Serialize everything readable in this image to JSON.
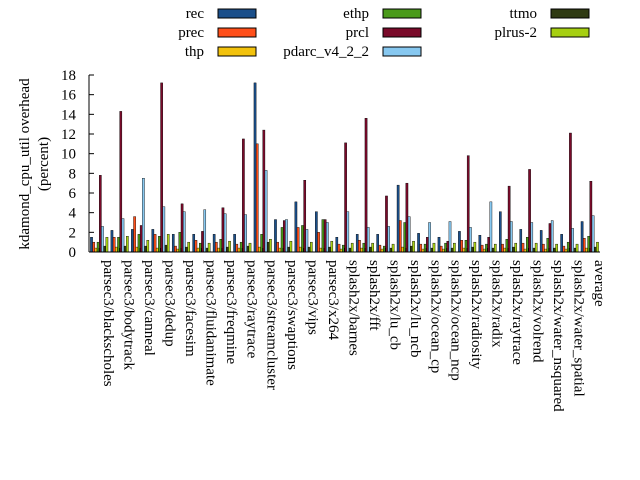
{
  "chart_data": {
    "type": "bar",
    "ylabel_line1": "kdamond_cpu_util overhead",
    "ylabel_line2": "(percent)",
    "ylim": [
      0,
      18
    ],
    "yticks": [
      0,
      2,
      4,
      6,
      8,
      10,
      12,
      14,
      16,
      18
    ],
    "grid": false,
    "legend_position": "top",
    "categories": [
      "parsec3/blackscholes",
      "parsec3/bodytrack",
      "parsec3/canneal",
      "parsec3/dedup",
      "parsec3/facesim",
      "parsec3/fluidanimate",
      "parsec3/freqmine",
      "parsec3/raytrace",
      "parsec3/streamcluster",
      "parsec3/swaptions",
      "parsec3/vips",
      "parsec3/x264",
      "splash2x/barnes",
      "splash2x/fft",
      "splash2x/lu_cb",
      "splash2x/lu_ncb",
      "splash2x/ocean_cp",
      "splash2x/ocean_ncp",
      "splash2x/radiosity",
      "splash2x/radix",
      "splash2x/raytrace",
      "splash2x/volrend",
      "splash2x/water_nsquared",
      "splash2x/water_spatial",
      "average"
    ],
    "series": [
      {
        "name": "rec",
        "color": "#1b4f8a",
        "values": [
          1.5,
          2.2,
          2.3,
          2.3,
          1.8,
          1.8,
          1.8,
          1.8,
          17.2,
          3.3,
          5.1,
          4.1,
          1.5,
          1.8,
          1.8,
          6.8,
          1.9,
          1.5,
          2.1,
          1.7,
          4.1,
          2.3,
          2.2,
          1.8,
          3.1
        ]
      },
      {
        "name": "prec",
        "color": "#ff4f1a",
        "values": [
          1.0,
          1.5,
          3.6,
          1.8,
          0.6,
          1.2,
          1.0,
          0.8,
          11.0,
          1.0,
          2.5,
          2.0,
          0.8,
          1.2,
          0.7,
          3.2,
          0.8,
          0.6,
          1.2,
          0.7,
          0.8,
          0.9,
          0.8,
          0.6,
          1.4
        ]
      },
      {
        "name": "thp",
        "color": "#f2c20d",
        "values": [
          0.4,
          0.5,
          0.5,
          0.4,
          0.3,
          0.4,
          0.4,
          0.4,
          0.5,
          0.4,
          0.5,
          0.4,
          0.3,
          0.4,
          0.3,
          0.5,
          0.3,
          0.3,
          0.4,
          0.3,
          0.4,
          0.3,
          0.3,
          0.3,
          0.4
        ]
      },
      {
        "name": "ethp",
        "color": "#4a9a1a",
        "values": [
          1.0,
          1.5,
          1.8,
          1.6,
          2.0,
          0.9,
          1.3,
          1.0,
          1.8,
          2.5,
          2.7,
          3.3,
          0.7,
          0.9,
          0.6,
          3.0,
          0.8,
          0.9,
          1.2,
          0.8,
          1.3,
          1.5,
          1.4,
          1.0,
          1.6
        ]
      },
      {
        "name": "prcl",
        "color": "#7a0a2a",
        "values": [
          7.8,
          14.3,
          2.7,
          17.2,
          4.9,
          2.1,
          4.5,
          11.5,
          12.4,
          3.2,
          7.3,
          3.3,
          11.1,
          13.6,
          5.7,
          7.0,
          1.5,
          1.1,
          9.8,
          1.5,
          6.7,
          8.4,
          2.9,
          12.1,
          7.2
        ]
      },
      {
        "name": "pdarc_v4_2_2",
        "color": "#87c8f0",
        "values": [
          2.6,
          3.4,
          7.5,
          4.6,
          4.1,
          4.3,
          3.9,
          3.8,
          8.3,
          3.3,
          2.3,
          3.0,
          4.1,
          2.5,
          2.6,
          3.6,
          3.0,
          3.1,
          2.5,
          5.1,
          3.1,
          3.0,
          3.2,
          2.4,
          3.7
        ]
      },
      {
        "name": "ttmo",
        "color": "#2f3a12",
        "values": [
          0.6,
          0.6,
          0.6,
          0.7,
          0.5,
          0.4,
          0.5,
          0.6,
          1.0,
          0.5,
          0.5,
          0.5,
          0.4,
          0.5,
          0.4,
          0.6,
          0.4,
          0.4,
          0.5,
          0.4,
          0.5,
          0.4,
          0.4,
          0.4,
          0.5
        ]
      },
      {
        "name": "plrus-2",
        "color": "#a6cf12",
        "values": [
          1.5,
          1.6,
          1.2,
          1.8,
          1.0,
          0.9,
          1.1,
          0.9,
          1.3,
          1.1,
          1.0,
          1.1,
          0.9,
          0.9,
          0.8,
          1.1,
          0.9,
          0.9,
          1.0,
          0.8,
          0.9,
          0.9,
          0.8,
          0.8,
          1.0
        ]
      }
    ]
  }
}
